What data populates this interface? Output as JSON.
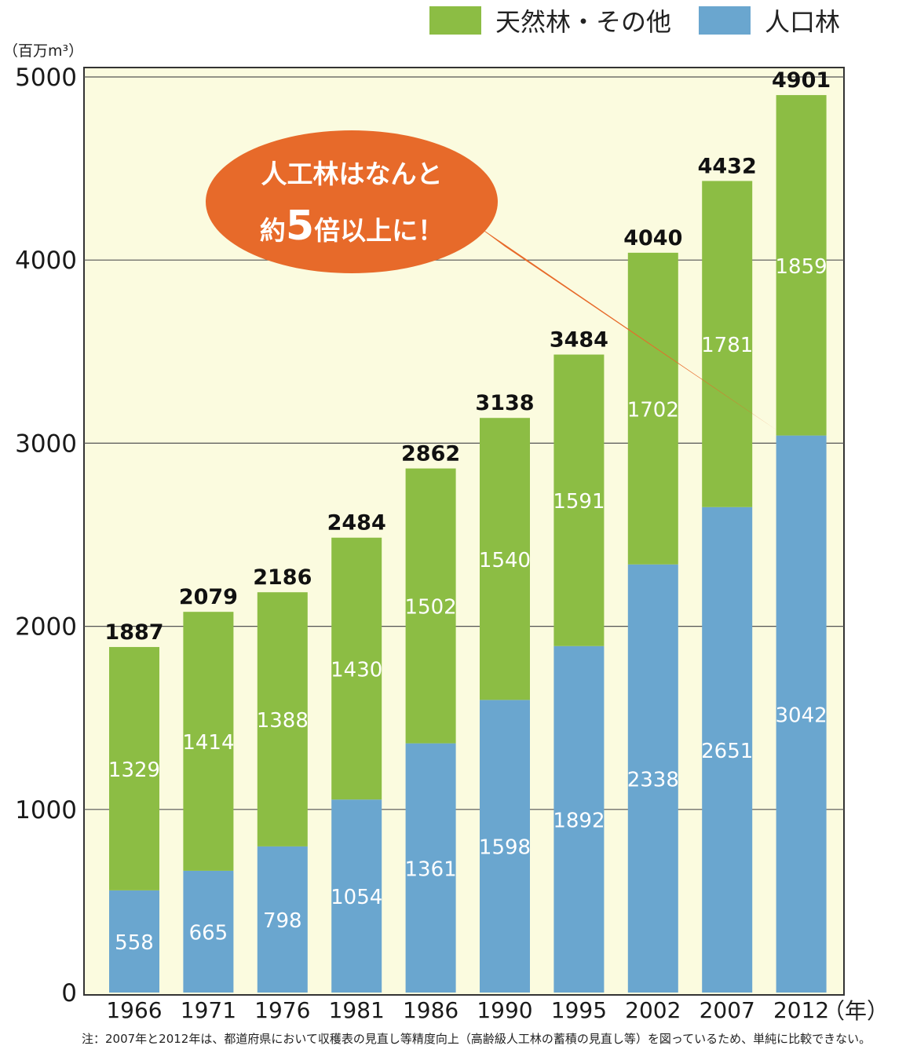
{
  "chart_data": {
    "type": "bar",
    "stacked": true,
    "unit_label": "（百万m³）",
    "x_suffix": "（年）",
    "categories": [
      "1966",
      "1971",
      "1976",
      "1981",
      "1986",
      "1990",
      "1995",
      "2002",
      "2007",
      "2012"
    ],
    "series": [
      {
        "name": "人口林",
        "color": "#6aa6cf",
        "values": [
          558,
          665,
          798,
          1054,
          1361,
          1598,
          1892,
          2338,
          2651,
          3042
        ]
      },
      {
        "name": "天然林・その他",
        "color": "#8cbd44",
        "values": [
          1329,
          1414,
          1388,
          1430,
          1502,
          1540,
          1591,
          1702,
          1781,
          1859
        ]
      }
    ],
    "totals": [
      1887,
      2079,
      2186,
      2484,
      2862,
      3138,
      3484,
      4040,
      4432,
      4901
    ],
    "ylim": [
      0,
      5000
    ],
    "yticks": [
      0,
      1000,
      2000,
      3000,
      4000,
      5000
    ],
    "grid": true,
    "legend_position": "top-right",
    "plot_background": "#fbfbdf",
    "callout": {
      "line1": "人工林はなんと",
      "line2_prefix": "約",
      "line2_number": "5",
      "line2_suffix": "倍以上に！",
      "color": "#e76a2a"
    },
    "footnote": "注：2007年と2012年は、都道府県において収穫表の見直し等精度向上（高齢級人工林の蓄積の見直し等）を図っているため、単純に比較できない。"
  }
}
